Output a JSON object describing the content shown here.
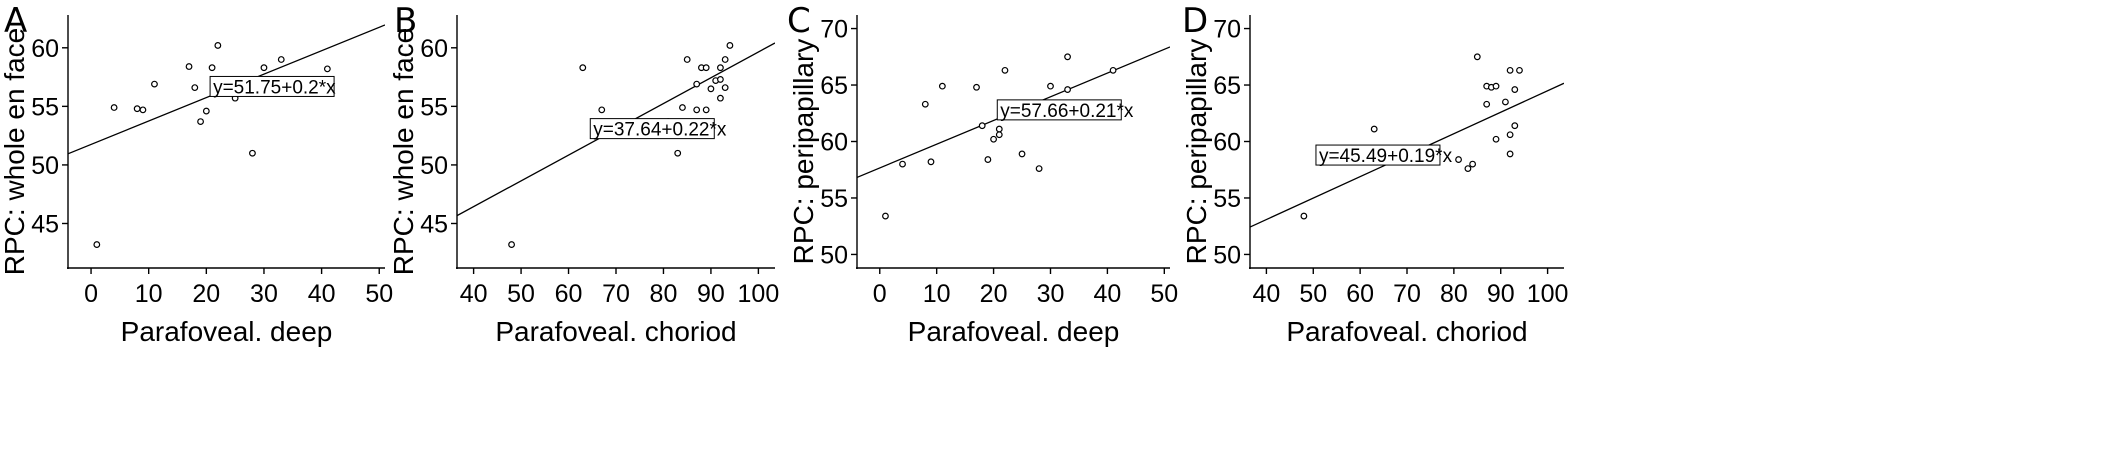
{
  "chart_data": [
    {
      "panel": "A",
      "type": "scatter",
      "xlabel": "Parafoveal. deep",
      "ylabel": "RPC: whole en face",
      "xlim": [
        -4,
        51
      ],
      "ylim": [
        41.2,
        62.8
      ],
      "xticks": [
        0,
        10,
        20,
        30,
        40,
        50
      ],
      "yticks": [
        45,
        50,
        55,
        60
      ],
      "fit": {
        "equation": "y=51.75+0.2*x",
        "intercept": 51.75,
        "slope": 0.2
      },
      "equation_anchor": [
        21,
        56.7
      ],
      "grid": false,
      "points": [
        [
          1,
          43.2
        ],
        [
          4,
          54.9
        ],
        [
          8,
          54.8
        ],
        [
          9,
          54.7
        ],
        [
          11,
          56.9
        ],
        [
          17,
          58.4
        ],
        [
          18,
          56.6
        ],
        [
          19,
          53.7
        ],
        [
          20,
          54.6
        ],
        [
          21,
          58.3
        ],
        [
          22,
          60.2
        ],
        [
          24,
          56.6
        ],
        [
          25,
          55.7
        ],
        [
          26,
          56.9
        ],
        [
          28,
          51.0
        ],
        [
          30,
          58.3
        ],
        [
          33,
          59.0
        ],
        [
          41,
          58.2
        ]
      ]
    },
    {
      "panel": "B",
      "type": "scatter",
      "xlabel": "Parafoveal. choriod",
      "ylabel": "RPC: whole en face",
      "xlim": [
        36.5,
        103.5
      ],
      "ylim": [
        41.2,
        62.8
      ],
      "xticks": [
        40,
        50,
        60,
        70,
        80,
        90,
        100
      ],
      "yticks": [
        45,
        50,
        55,
        60
      ],
      "fit": {
        "equation": "y=37.64+0.22*x",
        "intercept": 37.64,
        "slope": 0.22
      },
      "equation_anchor": [
        65,
        53.1
      ],
      "grid": false,
      "points": [
        [
          48,
          43.2
        ],
        [
          63,
          58.3
        ],
        [
          67,
          54.7
        ],
        [
          81,
          53.7
        ],
        [
          83,
          51.0
        ],
        [
          84,
          54.9
        ],
        [
          85,
          59.0
        ],
        [
          87,
          56.9
        ],
        [
          87,
          54.7
        ],
        [
          88,
          58.3
        ],
        [
          89,
          58.3
        ],
        [
          89,
          54.7
        ],
        [
          90,
          56.5
        ],
        [
          91,
          57.2
        ],
        [
          92,
          58.3
        ],
        [
          92,
          55.7
        ],
        [
          92,
          57.3
        ],
        [
          93,
          59.0
        ],
        [
          93,
          56.6
        ],
        [
          94,
          60.2
        ]
      ]
    },
    {
      "panel": "C",
      "type": "scatter",
      "xlabel": "Parafoveal. deep",
      "ylabel": "RPC: peripapillary",
      "xlim": [
        -4,
        51
      ],
      "ylim": [
        48.8,
        71.2
      ],
      "xticks": [
        0,
        10,
        20,
        30,
        40,
        50
      ],
      "yticks": [
        50,
        55,
        60,
        65,
        70
      ],
      "fit": {
        "equation": "y=57.66+0.21*x",
        "intercept": 57.66,
        "slope": 0.21
      },
      "equation_anchor": [
        21,
        62.8
      ],
      "grid": false,
      "points": [
        [
          1,
          53.4
        ],
        [
          4,
          58.0
        ],
        [
          8,
          63.3
        ],
        [
          9,
          58.2
        ],
        [
          11,
          64.9
        ],
        [
          17,
          64.8
        ],
        [
          18,
          61.4
        ],
        [
          19,
          58.4
        ],
        [
          20,
          60.2
        ],
        [
          21,
          60.6
        ],
        [
          21,
          61.1
        ],
        [
          22,
          66.3
        ],
        [
          22,
          63.4
        ],
        [
          25,
          58.9
        ],
        [
          28,
          57.6
        ],
        [
          30,
          64.9
        ],
        [
          33,
          67.5
        ],
        [
          33,
          64.6
        ],
        [
          41,
          66.3
        ]
      ]
    },
    {
      "panel": "D",
      "type": "scatter",
      "xlabel": "Parafoveal. choriod",
      "ylabel": "RPC: peripapillary",
      "xlim": [
        36.5,
        103.5
      ],
      "ylim": [
        48.8,
        71.2
      ],
      "xticks": [
        40,
        50,
        60,
        70,
        80,
        90,
        100
      ],
      "yticks": [
        50,
        55,
        60,
        65,
        70
      ],
      "fit": {
        "equation": "y=45.49+0.19*x",
        "intercept": 45.49,
        "slope": 0.19
      },
      "equation_anchor": [
        51,
        58.8
      ],
      "grid": false,
      "points": [
        [
          48,
          53.4
        ],
        [
          63,
          61.1
        ],
        [
          81,
          58.4
        ],
        [
          83,
          57.6
        ],
        [
          84,
          58.0
        ],
        [
          85,
          67.5
        ],
        [
          87,
          63.3
        ],
        [
          87,
          64.9
        ],
        [
          88,
          64.8
        ],
        [
          89,
          60.2
        ],
        [
          89,
          64.9
        ],
        [
          91,
          63.5
        ],
        [
          92,
          60.6
        ],
        [
          92,
          58.9
        ],
        [
          92,
          66.3
        ],
        [
          93,
          64.6
        ],
        [
          93,
          61.4
        ],
        [
          94,
          66.3
        ]
      ]
    }
  ]
}
